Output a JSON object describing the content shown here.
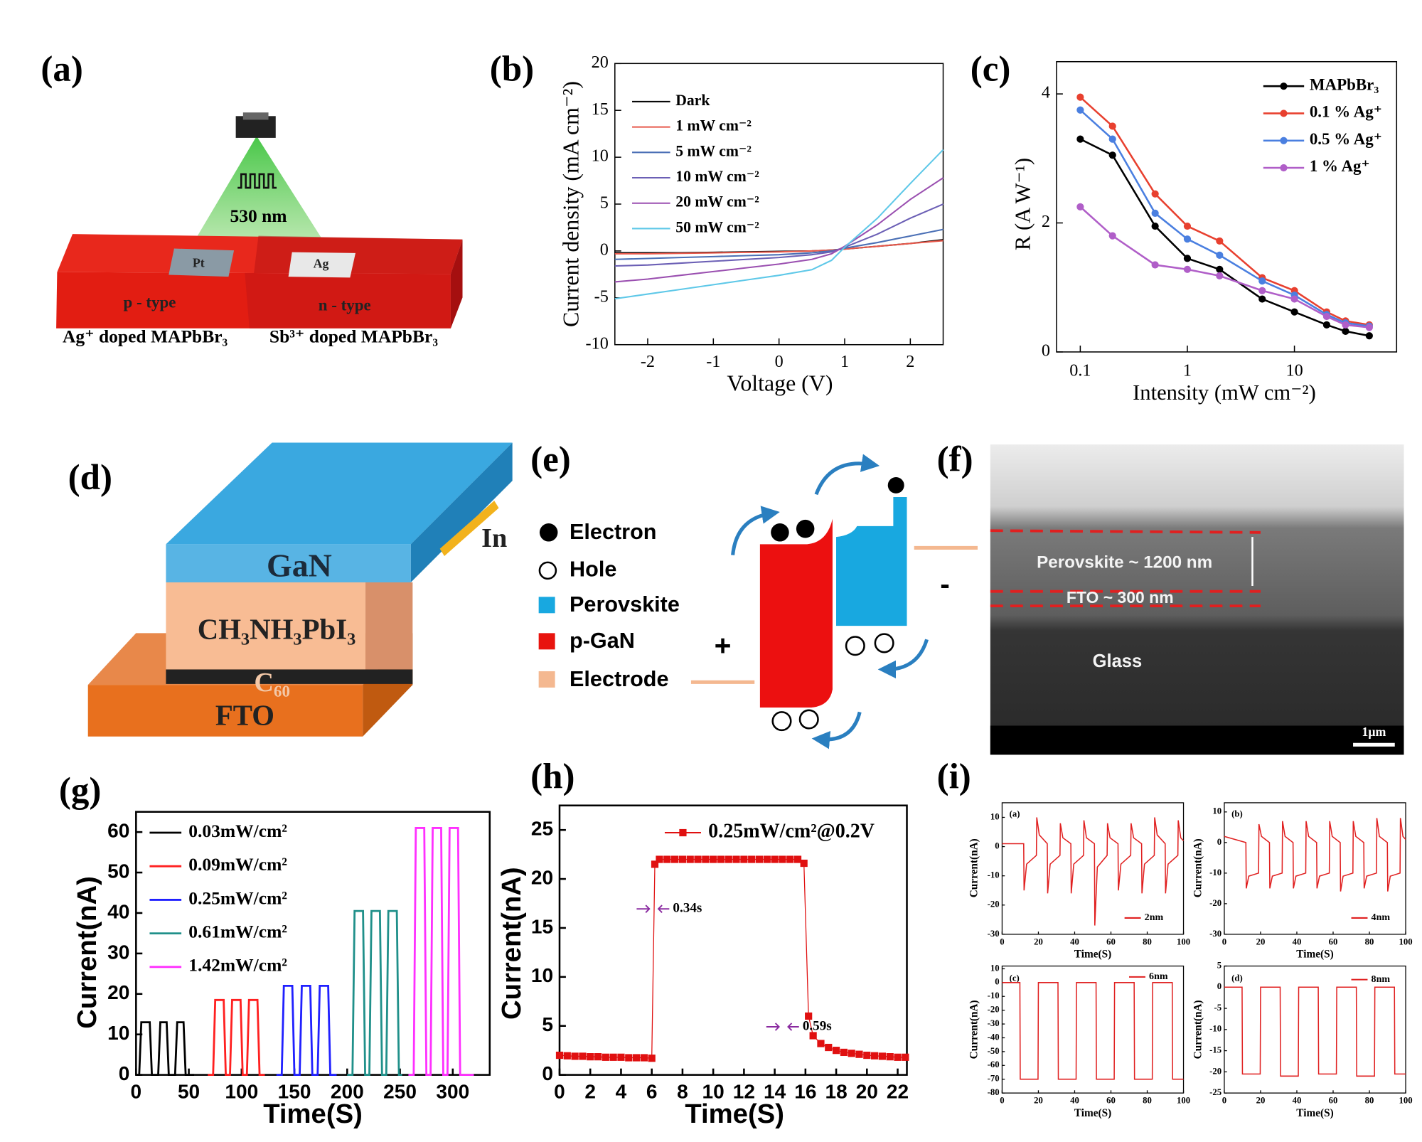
{
  "panel_labels": [
    "(a)",
    "(b)",
    "(c)",
    "(d)",
    "(e)",
    "(f)",
    "(g)",
    "(h)",
    "(i)"
  ],
  "diagram_a": {
    "wavelength": "530 nm",
    "electrodes": [
      "Pt",
      "Ag"
    ],
    "regions": [
      "p - type",
      "n - type"
    ],
    "captions": [
      "Ag⁺ doped MAPbBr₃",
      "Sb³⁺ doped MAPbBr₃"
    ]
  },
  "diagram_d": {
    "layers": [
      "GaN",
      "CH₃NH₃PbI₃",
      "C₆₀",
      "FTO"
    ],
    "contact": "In"
  },
  "diagram_e": {
    "legend": [
      "Electron",
      "Hole",
      "Perovskite",
      "p-GaN",
      "Electrode"
    ],
    "terminals": [
      "+",
      "-"
    ]
  },
  "image_f": {
    "labels": [
      "Perovskite ~ 1200 nm",
      "FTO ~ 300 nm",
      "Glass"
    ],
    "scale_bar": "1μm"
  },
  "chart_data": [
    {
      "type": "line",
      "xlabel": "Voltage (V)",
      "ylabel": "Current density (mA cm⁻²)",
      "x": [
        -2.5,
        -2,
        -1.5,
        -1,
        -0.5,
        0,
        0.5,
        0.8,
        1,
        1.5,
        2,
        2.5
      ],
      "xlim": [
        -2.5,
        2.5
      ],
      "xticks": [
        -2,
        -1,
        0,
        1,
        2
      ],
      "ylim": [
        -10,
        20
      ],
      "yticks": [
        -10,
        -5,
        0,
        5,
        10,
        15,
        20
      ],
      "legend": "upper left",
      "series": [
        {
          "name": "Dark",
          "color": "#000000",
          "values": [
            -0.2,
            -0.2,
            -0.2,
            -0.15,
            -0.1,
            -0.05,
            0,
            0.1,
            0.2,
            0.5,
            0.8,
            1.2
          ]
        },
        {
          "name": "1 mW cm⁻²",
          "color": "#e8584a",
          "values": [
            -0.3,
            -0.3,
            -0.25,
            -0.2,
            -0.15,
            -0.1,
            0,
            0.1,
            0.2,
            0.5,
            0.8,
            1.1
          ]
        },
        {
          "name": "5 mW cm⁻²",
          "color": "#4a6fb5",
          "values": [
            -0.9,
            -0.8,
            -0.7,
            -0.6,
            -0.5,
            -0.4,
            -0.2,
            0,
            0.3,
            0.9,
            1.6,
            2.3
          ]
        },
        {
          "name": "10 mW cm⁻²",
          "color": "#6b5fb5",
          "values": [
            -1.6,
            -1.5,
            -1.3,
            -1.1,
            -0.9,
            -0.7,
            -0.4,
            -0.1,
            0.4,
            1.8,
            3.5,
            5.0
          ]
        },
        {
          "name": "20 mW cm⁻²",
          "color": "#9a4fb0",
          "values": [
            -3.3,
            -3.0,
            -2.6,
            -2.2,
            -1.8,
            -1.4,
            -0.9,
            -0.3,
            0.5,
            2.8,
            5.5,
            7.8
          ]
        },
        {
          "name": "50 mW cm⁻²",
          "color": "#5ec8e8",
          "values": [
            -5.1,
            -4.6,
            -4.1,
            -3.6,
            -3.1,
            -2.6,
            -2.0,
            -1.0,
            0.4,
            3.5,
            7.2,
            10.8
          ]
        }
      ]
    },
    {
      "type": "line",
      "xlabel": "Intensity (mW cm⁻²)",
      "ylabel": "R (A W⁻¹)",
      "xscale": "log",
      "marker": "circle",
      "x": [
        0.1,
        0.2,
        0.5,
        1,
        2,
        5,
        10,
        20,
        30,
        50
      ],
      "xlim": [
        0.06,
        90
      ],
      "xticks": [
        0.1,
        1,
        10
      ],
      "ylim": [
        0,
        4.5
      ],
      "yticks": [
        0,
        2,
        4
      ],
      "legend": "upper right",
      "series": [
        {
          "name": "MAPbBr₃",
          "color": "#000000",
          "values": [
            3.3,
            3.05,
            1.95,
            1.45,
            1.28,
            0.82,
            0.62,
            0.42,
            0.32,
            0.25
          ]
        },
        {
          "name": "0.1 % Ag⁺",
          "color": "#e8402f",
          "values": [
            3.95,
            3.5,
            2.45,
            1.95,
            1.72,
            1.15,
            0.95,
            0.62,
            0.48,
            0.42
          ]
        },
        {
          "name": "0.5 % Ag⁺",
          "color": "#4a7fe0",
          "values": [
            3.75,
            3.3,
            2.15,
            1.75,
            1.5,
            1.1,
            0.88,
            0.58,
            0.45,
            0.4
          ]
        },
        {
          "name": "1 % Ag⁺",
          "color": "#b05ec8",
          "values": [
            2.25,
            1.8,
            1.35,
            1.28,
            1.18,
            0.95,
            0.82,
            0.55,
            0.42,
            0.38
          ]
        }
      ]
    },
    {
      "type": "line",
      "xlabel": "Time(S)",
      "ylabel": "Current(nA)",
      "xlim": [
        0,
        335
      ],
      "xticks": [
        0,
        50,
        100,
        150,
        200,
        250,
        300
      ],
      "ylim": [
        0,
        65
      ],
      "yticks": [
        0,
        10,
        20,
        30,
        40,
        50,
        60
      ],
      "legend": "upper left",
      "series": [
        {
          "name": "0.03mW/cm²",
          "color": "#000000",
          "x": [
            0,
            3,
            5,
            13,
            15,
            21,
            23,
            29,
            31,
            37,
            39,
            45,
            47,
            55
          ],
          "values": [
            0,
            0,
            13,
            13,
            0,
            0,
            13,
            13,
            0,
            0,
            13,
            13,
            0,
            0
          ]
        },
        {
          "name": "0.09mW/cm²",
          "color": "#ff2020",
          "x": [
            68,
            73,
            75,
            83,
            85,
            89,
            91,
            99,
            101,
            105,
            107,
            115,
            117,
            122
          ],
          "values": [
            0,
            0,
            18.5,
            18.5,
            0,
            0,
            18.5,
            18.5,
            0,
            0,
            18.5,
            18.5,
            0,
            0
          ]
        },
        {
          "name": "0.25mW/cm²",
          "color": "#2020ff",
          "x": [
            133,
            138,
            140,
            148,
            150,
            155,
            157,
            165,
            167,
            172,
            174,
            182,
            184,
            190
          ],
          "values": [
            0,
            0,
            22,
            22,
            0,
            0,
            22,
            22,
            0,
            0,
            22,
            22,
            0,
            0
          ]
        },
        {
          "name": "0.61mW/cm²",
          "color": "#20908a",
          "x": [
            200,
            205,
            207,
            215,
            217,
            221,
            223,
            231,
            233,
            237,
            239,
            247,
            249,
            252
          ],
          "values": [
            0,
            0,
            40.5,
            40.5,
            0,
            0,
            40.5,
            40.5,
            0,
            0,
            40.5,
            40.5,
            0,
            0
          ]
        },
        {
          "name": "1.42mW/cm²",
          "color": "#ff30ff",
          "x": [
            258,
            263,
            265,
            273,
            275,
            279,
            281,
            289,
            291,
            295,
            297,
            305,
            307,
            320
          ],
          "values": [
            0,
            0,
            61,
            61,
            0,
            0,
            61,
            61,
            0,
            0,
            61,
            61,
            0,
            0
          ]
        }
      ]
    },
    {
      "type": "line",
      "xlabel": "Time(S)",
      "ylabel": "Current(nA)",
      "marker": "square",
      "x": [
        0,
        0.5,
        1,
        1.5,
        2,
        2.5,
        3,
        3.5,
        4,
        4.5,
        5,
        5.5,
        6,
        6.2,
        6.5,
        7,
        7.5,
        8,
        8.5,
        9,
        9.5,
        10,
        10.5,
        11,
        11.5,
        12,
        12.5,
        13,
        13.5,
        14,
        14.5,
        15,
        15.5,
        15.9,
        16.2,
        16.5,
        17,
        17.5,
        18,
        18.5,
        19,
        19.5,
        20,
        20.5,
        21,
        21.5,
        22,
        22.5
      ],
      "xlim": [
        0,
        22.6
      ],
      "xticks": [
        0,
        2,
        4,
        6,
        8,
        10,
        12,
        14,
        16,
        18,
        20,
        22
      ],
      "ylim": [
        0,
        27.5
      ],
      "yticks": [
        0,
        5,
        10,
        15,
        20,
        25
      ],
      "legend": "upper right",
      "annotations": [
        "0.34s",
        "0.59s"
      ],
      "series": [
        {
          "name": "0.25mW/cm²@0.2V",
          "color": "#e01010",
          "values": [
            2,
            1.95,
            1.9,
            1.9,
            1.85,
            1.85,
            1.8,
            1.8,
            1.8,
            1.75,
            1.75,
            1.75,
            1.7,
            21.5,
            22,
            22,
            22,
            22,
            22,
            22,
            22,
            22,
            22,
            22,
            22,
            22,
            22,
            22,
            22,
            22,
            22,
            22,
            22,
            21.6,
            6,
            4,
            3.2,
            2.8,
            2.5,
            2.3,
            2.2,
            2.1,
            2,
            1.95,
            1.9,
            1.85,
            1.8,
            1.8
          ]
        }
      ]
    },
    {
      "type": "line",
      "label": "(a)",
      "xlabel": "Time(S)",
      "ylabel": "Current(nA)",
      "xlim": [
        0,
        100
      ],
      "xticks": [
        0,
        20,
        40,
        60,
        80,
        100
      ],
      "ylim": [
        -30,
        15
      ],
      "yticks": [
        -30,
        -20,
        -10,
        0,
        10
      ],
      "legend": "lower right",
      "series": [
        {
          "name": "2nm",
          "color": "#e02020",
          "x": [
            0,
            11.9,
            12.1,
            13.5,
            18.9,
            19.1,
            20.5,
            24.9,
            25.1,
            26.5,
            31.9,
            32.1,
            33.5,
            37.9,
            38.1,
            39.5,
            44.9,
            45.1,
            46.5,
            50.9,
            51.1,
            52.5,
            57.9,
            58.1,
            59.5,
            63.9,
            64.1,
            65.5,
            70.9,
            71.1,
            72.5,
            76.9,
            77.1,
            78.5,
            83.9,
            84.1,
            85.5,
            89.9,
            90.1,
            91.5,
            96.9,
            97.1,
            98.5,
            100
          ],
          "values": [
            1,
            1,
            -15,
            -6,
            -3,
            10,
            4,
            1,
            -16,
            -6,
            -3,
            8,
            3,
            1,
            -16,
            -6,
            -3,
            9,
            3,
            1,
            -27,
            -7,
            -3,
            8,
            3,
            1,
            -15,
            -6,
            -3,
            8,
            3,
            1,
            -16,
            -6,
            -3,
            10,
            4,
            1,
            -16,
            -6,
            -3,
            9,
            3,
            2
          ]
        }
      ]
    },
    {
      "type": "line",
      "label": "(b)",
      "xlabel": "Time(S)",
      "ylabel": "Current(nA)",
      "xlim": [
        0,
        100
      ],
      "xticks": [
        0,
        20,
        40,
        60,
        80,
        100
      ],
      "ylim": [
        -30,
        13
      ],
      "yticks": [
        -30,
        -20,
        -10,
        0,
        10
      ],
      "legend": "lower right",
      "series": [
        {
          "name": "4nm",
          "color": "#e02020",
          "x": [
            0,
            11.9,
            12.1,
            13.5,
            18.9,
            19.1,
            20.5,
            24.9,
            25.1,
            26.5,
            31.9,
            32.1,
            33.5,
            37.9,
            38.1,
            39.5,
            44.9,
            45.1,
            46.5,
            50.9,
            51.1,
            52.5,
            57.9,
            58.1,
            59.5,
            63.9,
            64.1,
            65.5,
            70.9,
            71.1,
            72.5,
            76.9,
            77.1,
            78.5,
            83.9,
            84.1,
            85.5,
            89.9,
            90.1,
            91.5,
            96.9,
            97.1,
            98.5,
            100
          ],
          "values": [
            2,
            0,
            -15,
            -11,
            -10,
            6,
            2,
            0,
            -15,
            -11,
            -10,
            7,
            2,
            0,
            -15,
            -11,
            -10,
            7,
            2,
            0,
            -15,
            -11,
            -10,
            7,
            2,
            0,
            -16,
            -11,
            -10,
            7,
            2,
            0,
            -15,
            -11,
            -10,
            8,
            2,
            0,
            -16,
            -11,
            -10,
            8,
            2,
            1
          ]
        }
      ]
    },
    {
      "type": "line",
      "label": "(c)",
      "xlabel": "Time(S)",
      "ylabel": "Current(nA)",
      "xlim": [
        0,
        100
      ],
      "xticks": [
        0,
        20,
        40,
        60,
        80,
        100
      ],
      "ylim": [
        -80,
        12
      ],
      "yticks": [
        -80,
        -70,
        -60,
        -50,
        -40,
        -30,
        -20,
        -10,
        0,
        10
      ],
      "legend": "upper right",
      "series": [
        {
          "name": "6nm",
          "color": "#e02020",
          "x": [
            0,
            9.8,
            10,
            19.8,
            20,
            30.8,
            31,
            40.8,
            41,
            51.8,
            52,
            61.8,
            62,
            72.8,
            73,
            82.8,
            83,
            93.8,
            94,
            100
          ],
          "values": [
            0,
            0,
            -70,
            -70,
            0,
            0,
            -70,
            -70,
            0,
            0,
            -70,
            -70,
            0,
            0,
            -70,
            -70,
            0,
            0,
            -70,
            -70
          ]
        }
      ]
    },
    {
      "type": "line",
      "label": "(d)",
      "xlabel": "Time(S)",
      "ylabel": "Current(nA)",
      "xlim": [
        0,
        100
      ],
      "xticks": [
        0,
        20,
        40,
        60,
        80,
        100
      ],
      "ylim": [
        -25,
        5
      ],
      "yticks": [
        -25,
        -20,
        -15,
        -10,
        -5,
        0,
        5
      ],
      "legend": "upper right",
      "series": [
        {
          "name": "8nm",
          "color": "#e02020",
          "x": [
            0,
            9.8,
            10,
            19.8,
            20,
            30.8,
            31,
            40.8,
            41,
            51.8,
            52,
            61.8,
            62,
            72.8,
            73,
            82.8,
            83,
            93.8,
            94,
            100
          ],
          "values": [
            0,
            0,
            -20.5,
            -20.5,
            0,
            0,
            -21,
            -21,
            0,
            0,
            -20.5,
            -20.5,
            0,
            0,
            -21,
            -21,
            0,
            0,
            -20.5,
            -20.5
          ]
        }
      ]
    }
  ]
}
